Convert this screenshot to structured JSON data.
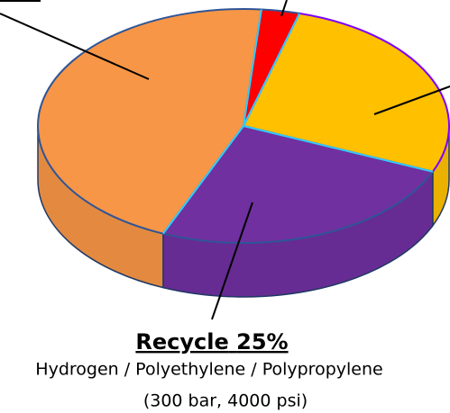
{
  "chart_data": {
    "type": "pie",
    "categories": [
      null,
      null,
      "Recycle",
      null
    ],
    "values": [
      3,
      27,
      25,
      45
    ],
    "value_labels": [
      null,
      null,
      "25%",
      null
    ],
    "colors": [
      "#ff0000",
      "#ffc000",
      "#7030a0",
      "#f79646"
    ],
    "edge_colors": [
      "#2f5597",
      "#7f00ff",
      "#2f5597",
      "#2f5597"
    ],
    "annotations": [
      "Hydrogen / Polyethylene / Polypropylene",
      "(300 bar, 4000 psi)"
    ]
  }
}
